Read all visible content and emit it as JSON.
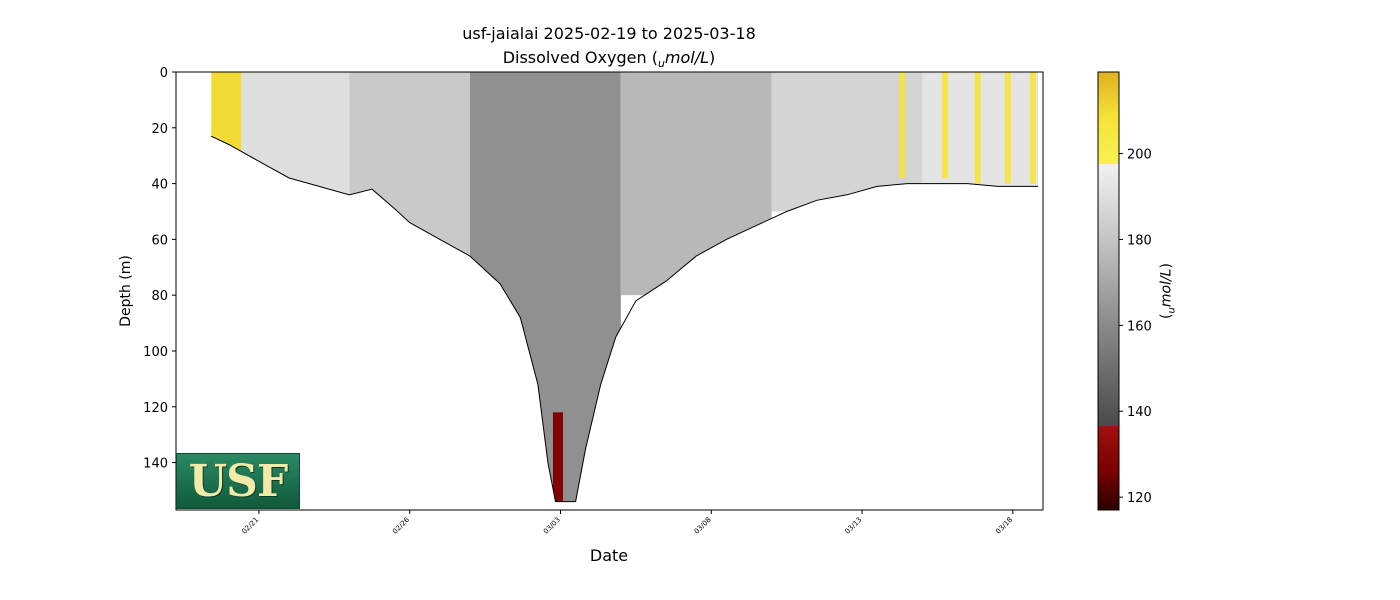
{
  "chart_data": {
    "type": "heatmap",
    "title": "usf-jaialai 2025-02-19 to 2025-03-18",
    "subtitle_prefix": "Dissolved Oxygen (",
    "subtitle_unit_sub": "u",
    "subtitle_unit_main": "mol/L",
    "subtitle_suffix": ")",
    "xlabel": "Date",
    "ylabel": "Depth (m)",
    "x_tick_labels": [
      "02/21",
      "02/26",
      "03/03",
      "03/08",
      "03/13",
      "03/18"
    ],
    "x_tick_dates": [
      "2025-02-21",
      "2025-02-26",
      "2025-03-03",
      "2025-03-08",
      "2025-03-13",
      "2025-03-18"
    ],
    "xlim": [
      "2025-02-18T06:00",
      "2025-03-19T00:00"
    ],
    "data_range": [
      "2025-02-19T10:00",
      "2025-03-18T20:00"
    ],
    "y_ticks": [
      0,
      20,
      40,
      60,
      80,
      100,
      120,
      140
    ],
    "ylim": [
      157,
      0
    ],
    "y_inverted": true,
    "colorbar": {
      "label_prefix": "(",
      "label_sub": "u",
      "label_main": "mol/L",
      "label_suffix": ")",
      "ticks": [
        120,
        140,
        160,
        180,
        200
      ],
      "range": [
        117,
        219
      ],
      "stops": [
        {
          "v": 117,
          "c": "#2a0000"
        },
        {
          "v": 126,
          "c": "#7a0000"
        },
        {
          "v": 136.5,
          "c": "#a01010"
        },
        {
          "v": 136.6,
          "c": "#4a4a4a"
        },
        {
          "v": 160,
          "c": "#8a8a8a"
        },
        {
          "v": 180,
          "c": "#c4c4c4"
        },
        {
          "v": 197.5,
          "c": "#f2f2f2"
        },
        {
          "v": 197.6,
          "c": "#f8f050"
        },
        {
          "v": 208,
          "c": "#f6e43a"
        },
        {
          "v": 219,
          "c": "#e0b020"
        }
      ]
    },
    "max_depth_profile": [
      {
        "t": "2025-02-19T10:00",
        "d": 23
      },
      {
        "t": "2025-02-20T00:00",
        "d": 26
      },
      {
        "t": "2025-02-21T00:00",
        "d": 32
      },
      {
        "t": "2025-02-22T00:00",
        "d": 38
      },
      {
        "t": "2025-02-23T00:00",
        "d": 41
      },
      {
        "t": "2025-02-24T00:00",
        "d": 44
      },
      {
        "t": "2025-02-24T18:00",
        "d": 42
      },
      {
        "t": "2025-02-25T12:00",
        "d": 49
      },
      {
        "t": "2025-02-26T00:00",
        "d": 54
      },
      {
        "t": "2025-02-27T00:00",
        "d": 60
      },
      {
        "t": "2025-02-28T00:00",
        "d": 66
      },
      {
        "t": "2025-03-01T00:00",
        "d": 76
      },
      {
        "t": "2025-03-01T16:00",
        "d": 88
      },
      {
        "t": "2025-03-02T06:00",
        "d": 112
      },
      {
        "t": "2025-03-02T14:00",
        "d": 140
      },
      {
        "t": "2025-03-02T20:00",
        "d": 154
      },
      {
        "t": "2025-03-03T12:00",
        "d": 154
      },
      {
        "t": "2025-03-03T20:00",
        "d": 135
      },
      {
        "t": "2025-03-04T08:00",
        "d": 112
      },
      {
        "t": "2025-03-04T20:00",
        "d": 95
      },
      {
        "t": "2025-03-05T12:00",
        "d": 82
      },
      {
        "t": "2025-03-06T12:00",
        "d": 75
      },
      {
        "t": "2025-03-07T12:00",
        "d": 66
      },
      {
        "t": "2025-03-08T12:00",
        "d": 60
      },
      {
        "t": "2025-03-09T12:00",
        "d": 55
      },
      {
        "t": "2025-03-10T12:00",
        "d": 50
      },
      {
        "t": "2025-03-11T12:00",
        "d": 46
      },
      {
        "t": "2025-03-12T12:00",
        "d": 44
      },
      {
        "t": "2025-03-13T12:00",
        "d": 41
      },
      {
        "t": "2025-03-14T12:00",
        "d": 40
      },
      {
        "t": "2025-03-15T12:00",
        "d": 40
      },
      {
        "t": "2025-03-16T12:00",
        "d": 40
      },
      {
        "t": "2025-03-17T12:00",
        "d": 41
      },
      {
        "t": "2025-03-18T20:00",
        "d": 41
      }
    ],
    "value_zones": [
      {
        "t_start": "2025-02-19T10:00",
        "t_end": "2025-02-20T10:00",
        "d_start": 0,
        "d_end": 45,
        "value": 210
      },
      {
        "t_start": "2025-02-20T10:00",
        "t_end": "2025-02-24T00:00",
        "d_start": 0,
        "d_end": 60,
        "value": 190
      },
      {
        "t_start": "2025-02-24T00:00",
        "t_end": "2025-02-28T00:00",
        "d_start": 0,
        "d_end": 80,
        "value": 182
      },
      {
        "t_start": "2025-02-28T00:00",
        "t_end": "2025-03-05T00:00",
        "d_start": 0,
        "d_end": 157,
        "value": 162
      },
      {
        "t_start": "2025-03-05T00:00",
        "t_end": "2025-03-10T00:00",
        "d_start": 0,
        "d_end": 80,
        "value": 176
      },
      {
        "t_start": "2025-03-10T00:00",
        "t_end": "2025-03-15T00:00",
        "d_start": 0,
        "d_end": 50,
        "value": 186
      },
      {
        "t_start": "2025-03-15T00:00",
        "t_end": "2025-03-18T20:00",
        "d_start": 0,
        "d_end": 45,
        "value": 192
      },
      {
        "t_start": "2025-03-02T18:00",
        "t_end": "2025-03-03T02:00",
        "d_start": 122,
        "d_end": 154,
        "value": 128
      }
    ],
    "high_streaks": [
      {
        "t": "2025-03-14T08:00",
        "d_end": 38
      },
      {
        "t": "2025-03-15T18:00",
        "d_end": 38
      },
      {
        "t": "2025-03-16T20:00",
        "d_end": 40
      },
      {
        "t": "2025-03-17T20:00",
        "d_end": 40
      },
      {
        "t": "2025-03-18T16:00",
        "d_end": 40
      }
    ],
    "logo_text": "USF"
  }
}
